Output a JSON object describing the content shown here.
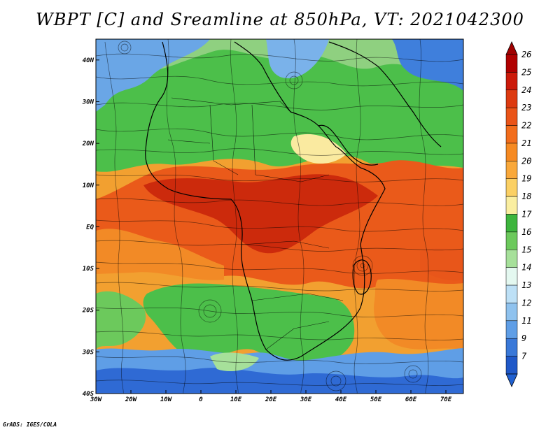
{
  "title": "WBPT [C] and Sreamline at 850hPa, VT: 2021042300",
  "credit": "GrADS: IGES/COLA",
  "map": {
    "lon_range": [
      -30,
      75
    ],
    "lat_range": [
      -40,
      45
    ],
    "x_ticks": [
      {
        "lon": -30,
        "label": "30W"
      },
      {
        "lon": -20,
        "label": "20W"
      },
      {
        "lon": -10,
        "label": "10W"
      },
      {
        "lon": 0,
        "label": "0"
      },
      {
        "lon": 10,
        "label": "10E"
      },
      {
        "lon": 20,
        "label": "20E"
      },
      {
        "lon": 30,
        "label": "30E"
      },
      {
        "lon": 40,
        "label": "40E"
      },
      {
        "lon": 50,
        "label": "50E"
      },
      {
        "lon": 60,
        "label": "60E"
      },
      {
        "lon": 70,
        "label": "70E"
      }
    ],
    "y_ticks": [
      {
        "lat": 40,
        "label": "40N"
      },
      {
        "lat": 30,
        "label": "30N"
      },
      {
        "lat": 20,
        "label": "20N"
      },
      {
        "lat": 10,
        "label": "10N"
      },
      {
        "lat": 0,
        "label": "EQ"
      },
      {
        "lat": -10,
        "label": "10S"
      },
      {
        "lat": -20,
        "label": "20S"
      },
      {
        "lat": -30,
        "label": "30S"
      },
      {
        "lat": -40,
        "label": "40S"
      }
    ]
  },
  "colorbar": {
    "labels": [
      "26",
      "25",
      "24",
      "23",
      "22",
      "21",
      "20",
      "19",
      "18",
      "17",
      "16",
      "15",
      "14",
      "13",
      "12",
      "11",
      "9",
      "7"
    ],
    "colors": [
      "#b00000",
      "#cc1a0a",
      "#dd3a10",
      "#ea5418",
      "#f26d1c",
      "#f68a22",
      "#f9a83a",
      "#fbd064",
      "#faeea0",
      "#3db53d",
      "#6cc95c",
      "#a6e09a",
      "#e4f8f0",
      "#bde0f6",
      "#8fc2ee",
      "#5f9ee6",
      "#3978d8",
      "#1f58c8"
    ],
    "top_arrow_color": "#a00000",
    "bottom_arrow_color": "#2060d0"
  }
}
